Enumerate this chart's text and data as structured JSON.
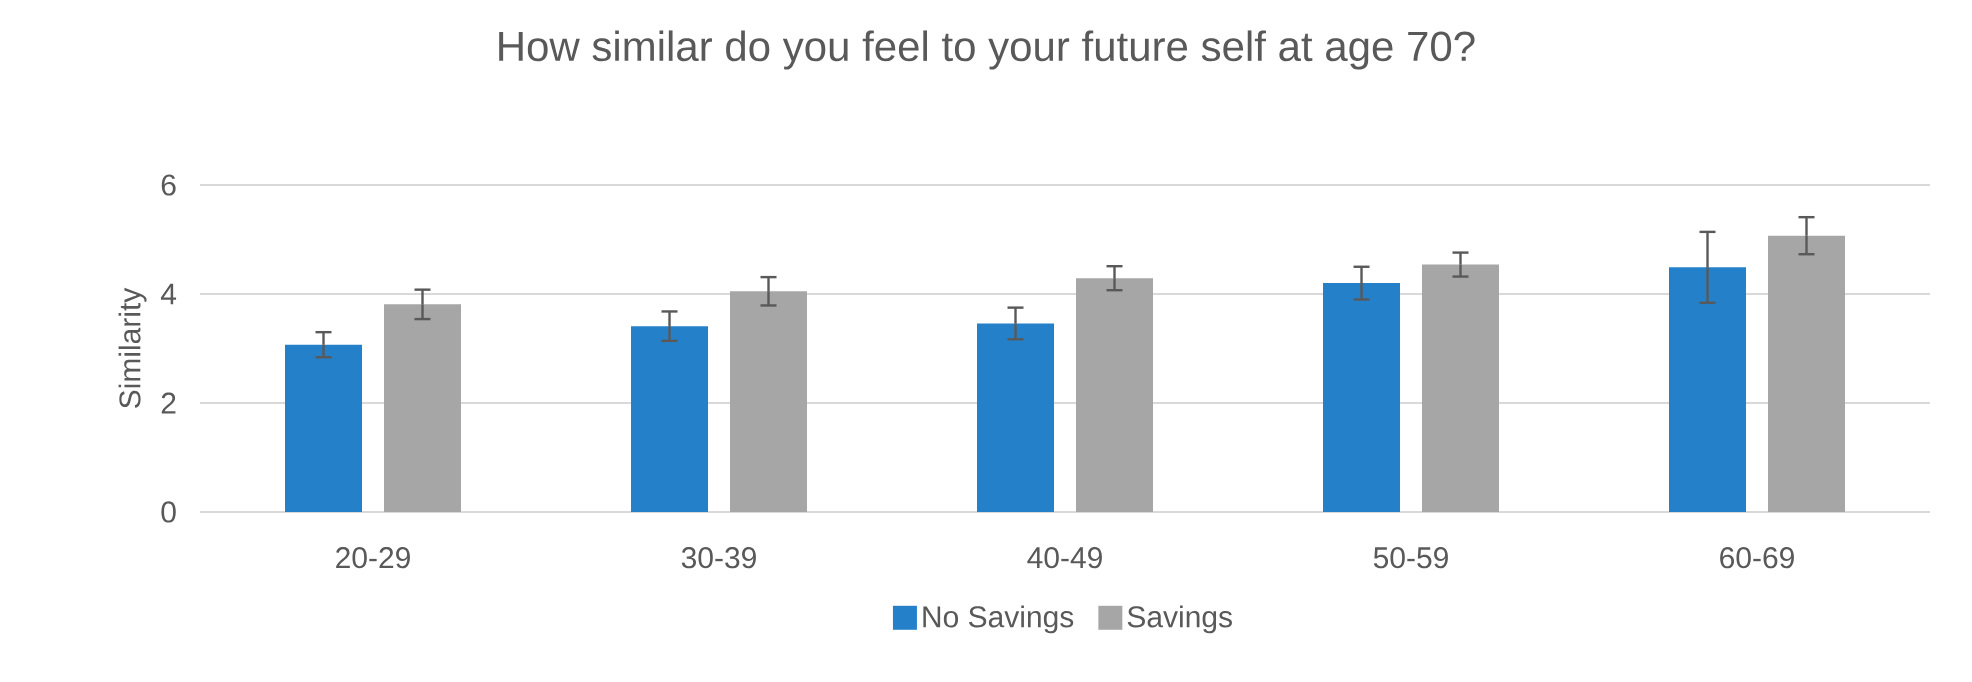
{
  "chart_data": {
    "type": "bar",
    "title": "How similar do you feel to your future self at age 70?",
    "ylabel": "Similarity",
    "categories": [
      "20-29",
      "30-39",
      "40-49",
      "50-59",
      "60-69"
    ],
    "series": [
      {
        "name": "No Savings",
        "color": "#2580ca",
        "values": [
          3.07,
          3.41,
          3.46,
          4.2,
          4.49
        ],
        "errors": [
          0.23,
          0.27,
          0.29,
          0.3,
          0.65
        ]
      },
      {
        "name": "Savings",
        "color": "#a6a6a6",
        "values": [
          3.81,
          4.05,
          4.29,
          4.54,
          5.07
        ],
        "errors": [
          0.27,
          0.26,
          0.22,
          0.22,
          0.34
        ]
      }
    ],
    "ylim": [
      0,
      6
    ],
    "yticks": [
      0,
      2,
      4,
      6
    ],
    "grid": "y",
    "legend": "bottom"
  }
}
